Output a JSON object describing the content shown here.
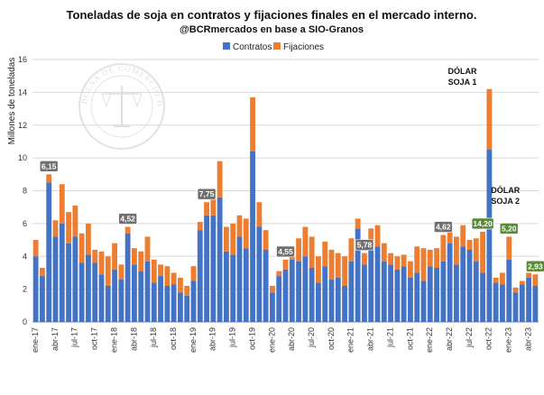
{
  "chart_data": {
    "type": "bar",
    "stacked": true,
    "title": "Toneladas de soja en contratos y fijaciones finales en el mercado interno.",
    "subtitle": "@BCRmercados en base a SIO-Granos",
    "ylabel": "Millones de toneladas",
    "ylim": [
      0,
      16
    ],
    "yticks": [
      0,
      2,
      4,
      6,
      8,
      10,
      12,
      14,
      16
    ],
    "x_tick_labels": [
      "ene-17",
      "abr-17",
      "jul-17",
      "oct-17",
      "ene-18",
      "abr-18",
      "jul-18",
      "oct-18",
      "ene-19",
      "abr-19",
      "jul-19",
      "oct-19",
      "ene-20",
      "abr-20",
      "jul-20",
      "oct-20",
      "ene-21",
      "abr-21",
      "jul-21",
      "oct-21",
      "ene-22",
      "abr-22",
      "jul-22",
      "oct-22",
      "ene-23",
      "abr-23"
    ],
    "x_tick_every": 3,
    "colors": {
      "Contratos": "#4472c4",
      "Fijaciones": "#ed7d31"
    },
    "legend_position": "top-center",
    "grid": "horizontal",
    "series": [
      {
        "name": "Contratos",
        "values": [
          4.0,
          2.8,
          8.5,
          5.2,
          6.0,
          4.8,
          5.2,
          3.6,
          4.1,
          3.6,
          2.9,
          2.2,
          3.2,
          2.6,
          5.4,
          3.5,
          3.1,
          3.7,
          2.4,
          2.8,
          2.2,
          2.3,
          1.8,
          1.6,
          2.5,
          5.6,
          6.5,
          6.5,
          7.6,
          4.3,
          4.1,
          5.2,
          4.5,
          10.4,
          5.8,
          4.4,
          1.8,
          2.8,
          3.2,
          3.8,
          3.7,
          4.0,
          3.3,
          2.4,
          3.4,
          2.6,
          2.7,
          2.2,
          3.7,
          5.7,
          3.5,
          4.6,
          4.6,
          3.7,
          3.5,
          3.2,
          3.4,
          2.7,
          3.0,
          2.5,
          3.4,
          3.3,
          3.7,
          4.8,
          3.5,
          4.6,
          4.4,
          3.7,
          3.0,
          10.5,
          2.4,
          2.3,
          3.8,
          1.8,
          2.3,
          2.7,
          2.2
        ]
      },
      {
        "name": "Fijaciones",
        "values": [
          1.0,
          0.5,
          0.5,
          1.0,
          2.4,
          1.9,
          1.9,
          1.8,
          1.9,
          0.8,
          1.4,
          1.8,
          1.6,
          0.9,
          0.4,
          1.0,
          1.2,
          1.5,
          1.4,
          0.7,
          1.2,
          0.7,
          0.9,
          0.6,
          0.9,
          0.5,
          0.8,
          1.2,
          2.2,
          1.5,
          1.9,
          1.3,
          1.8,
          3.3,
          1.5,
          1.2,
          0.4,
          0.3,
          0.6,
          0.8,
          1.4,
          1.8,
          1.9,
          1.6,
          1.5,
          1.8,
          1.5,
          1.8,
          1.4,
          0.6,
          0.7,
          1.1,
          1.3,
          1.1,
          0.7,
          0.8,
          0.7,
          1.0,
          1.6,
          2.0,
          1.0,
          1.2,
          1.6,
          1.2,
          1.7,
          1.3,
          0.6,
          1.4,
          2.5,
          3.7,
          0.3,
          0.7,
          1.4,
          0.3,
          0.2,
          0.3,
          0.7
        ]
      }
    ],
    "badges": [
      {
        "label": "6,15",
        "index": 2,
        "color": "#707070"
      },
      {
        "label": "4,52",
        "index": 14,
        "color": "#707070"
      },
      {
        "label": "7,75",
        "index": 26,
        "color": "#707070"
      },
      {
        "label": "4,55",
        "index": 38,
        "color": "#707070"
      },
      {
        "label": "5,78",
        "index": 50,
        "color": "#707070"
      },
      {
        "label": "4,62",
        "index": 62,
        "color": "#707070"
      },
      {
        "label": "14,20",
        "index": 68,
        "color": "#5a8a3a"
      },
      {
        "label": "5,20",
        "index": 72,
        "color": "#5a8a3a"
      },
      {
        "label": "2,93",
        "index": 76,
        "color": "#5a8a3a"
      }
    ],
    "annotations": [
      {
        "lines": [
          "DÓLAR",
          "SOJA 1"
        ],
        "index": 66
      },
      {
        "lines": [
          "DÓLAR",
          "SOJA 2"
        ],
        "index": 72
      }
    ],
    "watermark": "BOLSA DE COMERCIO DE ROSARIO"
  }
}
